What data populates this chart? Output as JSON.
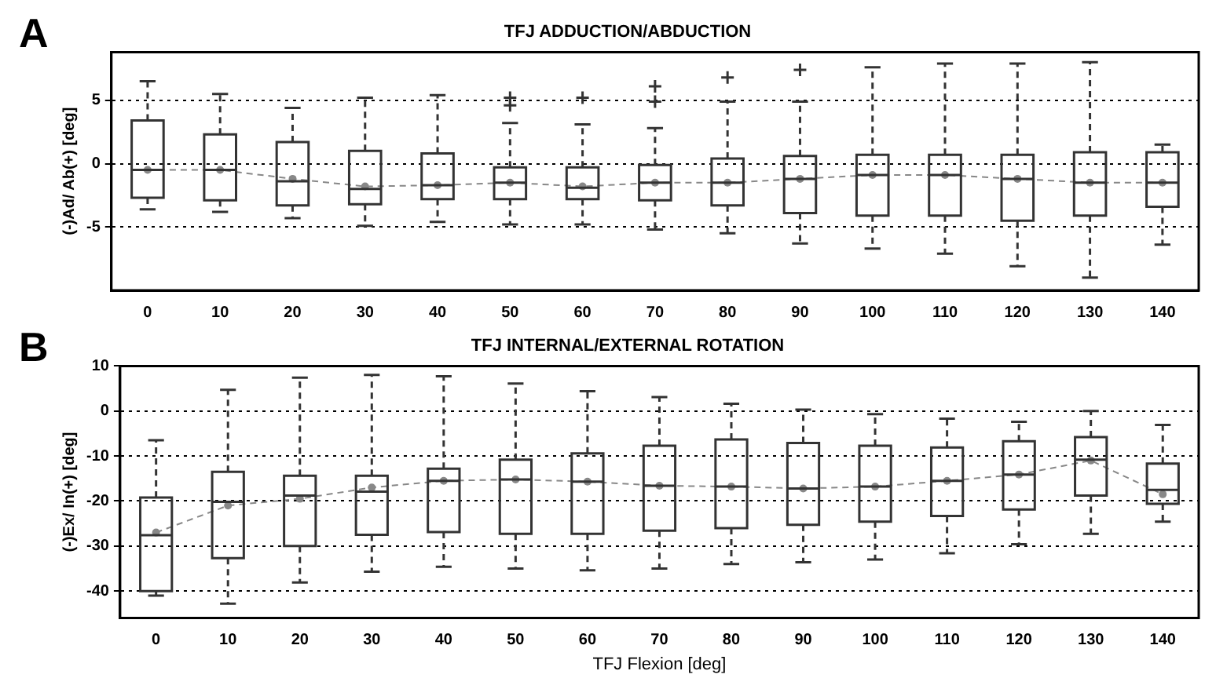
{
  "chart_data": [
    {
      "type": "box",
      "title": "TFJ ADDUCTION/ABDUCTION",
      "ylabel": "(-)Ad/ Ab(+) [deg]",
      "annotations": [
        "A"
      ],
      "categories": [
        "0",
        "10",
        "20",
        "30",
        "40",
        "50",
        "60",
        "70",
        "80",
        "90",
        "100",
        "110",
        "120",
        "130",
        "140"
      ],
      "ylim": [
        -10,
        8.8
      ],
      "yticks": [
        -5,
        0,
        5
      ],
      "grid": "y",
      "series": [
        {
          "color": "#333333",
          "boxes": [
            {
              "low": -3.6,
              "q1": -2.7,
              "median": -0.5,
              "q3": 3.4,
              "high": 6.5
            },
            {
              "low": -3.8,
              "q1": -2.9,
              "median": -0.5,
              "q3": 2.3,
              "high": 5.5
            },
            {
              "low": -4.3,
              "q1": -3.3,
              "median": -1.4,
              "q3": 1.7,
              "high": 4.4
            },
            {
              "low": -4.9,
              "q1": -3.2,
              "median": -2.0,
              "q3": 1.0,
              "high": 5.2
            },
            {
              "low": -4.6,
              "q1": -2.8,
              "median": -1.7,
              "q3": 0.8,
              "high": 5.4
            },
            {
              "low": -4.8,
              "q1": -2.8,
              "median": -1.5,
              "q3": -0.3,
              "high": 3.2,
              "outliers": [
                5.2,
                4.6
              ]
            },
            {
              "low": -4.8,
              "q1": -2.8,
              "median": -1.9,
              "q3": -0.3,
              "high": 3.1,
              "outliers": [
                5.2
              ]
            },
            {
              "low": -5.2,
              "q1": -2.9,
              "median": -1.5,
              "q3": -0.1,
              "high": 2.8,
              "outliers": [
                6.1,
                4.9
              ]
            },
            {
              "low": -5.5,
              "q1": -3.3,
              "median": -1.5,
              "q3": 0.4,
              "high": 4.9,
              "outliers": [
                6.8
              ]
            },
            {
              "low": -6.3,
              "q1": -3.9,
              "median": -1.2,
              "q3": 0.6,
              "high": 4.9,
              "outliers": [
                7.4
              ]
            },
            {
              "low": -6.7,
              "q1": -4.1,
              "median": -0.9,
              "q3": 0.7,
              "high": 7.6
            },
            {
              "low": -7.1,
              "q1": -4.1,
              "median": -0.9,
              "q3": 0.7,
              "high": 7.9
            },
            {
              "low": -8.1,
              "q1": -4.5,
              "median": -1.2,
              "q3": 0.7,
              "high": 7.9
            },
            {
              "low": -9.0,
              "q1": -4.1,
              "median": -1.5,
              "q3": 0.9,
              "high": 8.0
            },
            {
              "low": -6.4,
              "q1": -3.4,
              "median": -1.5,
              "q3": 0.9,
              "high": 1.5
            }
          ]
        },
        {
          "type": "line",
          "color": "#888888",
          "line_style": "dashed",
          "marker": "circle",
          "values": [
            -0.5,
            -0.5,
            -1.2,
            -1.8,
            -1.7,
            -1.5,
            -1.8,
            -1.5,
            -1.5,
            -1.2,
            -0.9,
            -0.9,
            -1.2,
            -1.5,
            -1.5
          ]
        }
      ]
    },
    {
      "type": "box",
      "title": "TFJ INTERNAL/EXTERNAL ROTATION",
      "xlabel": "TFJ Flexion [deg]",
      "ylabel": "(-)Ex/ In(+) [deg]",
      "annotations": [
        "B"
      ],
      "categories": [
        "0",
        "10",
        "20",
        "30",
        "40",
        "50",
        "60",
        "70",
        "80",
        "90",
        "100",
        "110",
        "120",
        "130",
        "140"
      ],
      "ylim": [
        -46,
        10
      ],
      "yticks": [
        -40,
        -30,
        -20,
        -10,
        0,
        10
      ],
      "grid": "y",
      "series": [
        {
          "color": "#333333",
          "boxes": [
            {
              "low": -41,
              "q1": -40,
              "median": -27.6,
              "q3": -19.2,
              "high": -6.5
            },
            {
              "low": -42.8,
              "q1": -32.7,
              "median": -20.2,
              "q3": -13.5,
              "high": 4.7
            },
            {
              "low": -38.1,
              "q1": -30,
              "median": -18.8,
              "q3": -14.4,
              "high": 7.4
            },
            {
              "low": -35.7,
              "q1": -27.5,
              "median": -17.9,
              "q3": -14.4,
              "high": 8
            },
            {
              "low": -34.6,
              "q1": -26.9,
              "median": -15.5,
              "q3": -12.8,
              "high": 7.7
            },
            {
              "low": -35,
              "q1": -27.3,
              "median": -15.2,
              "q3": -10.8,
              "high": 6.1
            },
            {
              "low": -35.4,
              "q1": -27.3,
              "median": -15.7,
              "q3": -9.4,
              "high": 4.4
            },
            {
              "low": -35,
              "q1": -26.6,
              "median": -16.6,
              "q3": -7.7,
              "high": 3.1
            },
            {
              "low": -34,
              "q1": -26,
              "median": -16.8,
              "q3": -6.3,
              "high": 1.6
            },
            {
              "low": -33.6,
              "q1": -25.3,
              "median": -17.2,
              "q3": -7.1,
              "high": 0.3
            },
            {
              "low": -33,
              "q1": -24.6,
              "median": -16.8,
              "q3": -7.7,
              "high": -0.7
            },
            {
              "low": -31.6,
              "q1": -23.3,
              "median": -15.5,
              "q3": -8.1,
              "high": -1.7
            },
            {
              "low": -29.6,
              "q1": -21.9,
              "median": -14.1,
              "q3": -6.7,
              "high": -2.4
            },
            {
              "low": -27.3,
              "q1": -18.8,
              "median": -10.8,
              "q3": -5.8,
              "high": 0
            },
            {
              "low": -24.6,
              "q1": -20.6,
              "median": -17.5,
              "q3": -11.7,
              "high": -3.1
            }
          ]
        },
        {
          "type": "line",
          "color": "#888888",
          "line_style": "dashed",
          "marker": "circle",
          "values": [
            -27,
            -21,
            -19.5,
            -17,
            -15.5,
            -15.2,
            -15.7,
            -16.6,
            -16.8,
            -17.2,
            -16.8,
            -15.5,
            -14.1,
            -11,
            -18.5
          ]
        }
      ]
    }
  ]
}
